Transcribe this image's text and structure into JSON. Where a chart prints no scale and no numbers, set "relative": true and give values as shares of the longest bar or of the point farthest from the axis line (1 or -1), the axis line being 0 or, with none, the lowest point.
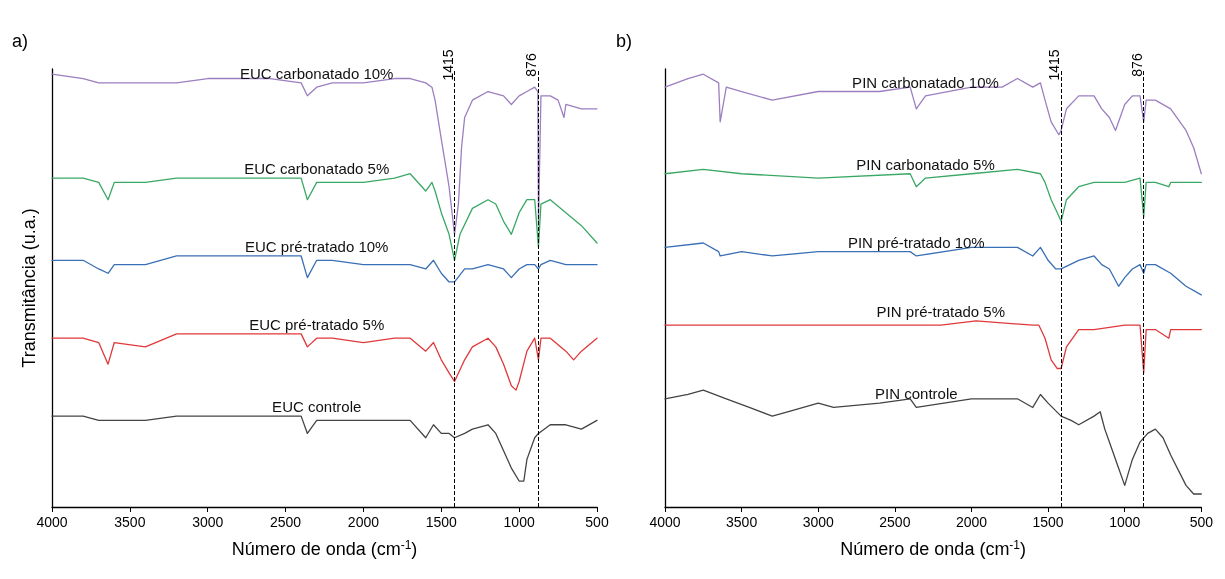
{
  "chart_data": [
    {
      "type": "line",
      "relative": true,
      "xlabel": "Número de onda (cm$^{-1}$)",
      "ylabel": "Transmitância (u.a.)",
      "annotations": [
        "a)"
      ],
      "xlim": [
        4000,
        500
      ],
      "xticks": [
        4000,
        3500,
        3000,
        2500,
        2000,
        1500,
        1000,
        500
      ],
      "grid": false,
      "legend": false,
      "marker": "none",
      "line_style": "solid",
      "ref_lines": [
        {
          "axis": "x",
          "value": 1415,
          "label": "1415",
          "color": "#000000",
          "line_style": "dashed"
        },
        {
          "axis": "x",
          "value": 876,
          "label": "876",
          "color": "#000000",
          "line_style": "dashed"
        }
      ],
      "series": [
        {
          "name": "EUC carbonatado 10%",
          "color": "#9b7fc0",
          "x": [
            4000,
            3800,
            3700,
            3600,
            3400,
            3200,
            3000,
            2600,
            2400,
            2360,
            2300,
            2200,
            2000,
            1800,
            1700,
            1600,
            1560,
            1540,
            1500,
            1450,
            1415,
            1390,
            1370,
            1350,
            1300,
            1200,
            1100,
            1050,
            1000,
            950,
            900,
            880,
            876,
            860,
            800,
            750,
            712,
            700,
            600,
            500
          ],
          "values": [
            1.0,
            0.99,
            0.98,
            0.98,
            0.98,
            0.98,
            0.99,
            0.99,
            0.98,
            0.95,
            0.97,
            0.98,
            0.98,
            0.99,
            0.99,
            0.98,
            0.97,
            0.94,
            0.85,
            0.74,
            0.63,
            0.7,
            0.83,
            0.9,
            0.94,
            0.96,
            0.95,
            0.93,
            0.95,
            0.96,
            0.97,
            0.96,
            0.65,
            0.95,
            0.95,
            0.94,
            0.9,
            0.93,
            0.92,
            0.92
          ]
        },
        {
          "name": "EUC carbonatado 5%",
          "color": "#3aa865",
          "x": [
            4000,
            3800,
            3700,
            3640,
            3600,
            3400,
            3200,
            3000,
            2600,
            2400,
            2360,
            2300,
            2200,
            2000,
            1800,
            1700,
            1600,
            1560,
            1540,
            1500,
            1450,
            1415,
            1380,
            1300,
            1200,
            1150,
            1100,
            1050,
            1000,
            950,
            900,
            876,
            860,
            800,
            700,
            600,
            500
          ],
          "values": [
            0.76,
            0.76,
            0.75,
            0.71,
            0.75,
            0.75,
            0.76,
            0.76,
            0.76,
            0.76,
            0.71,
            0.75,
            0.75,
            0.75,
            0.76,
            0.77,
            0.73,
            0.75,
            0.73,
            0.68,
            0.63,
            0.57,
            0.63,
            0.69,
            0.71,
            0.7,
            0.66,
            0.63,
            0.68,
            0.71,
            0.71,
            0.6,
            0.7,
            0.71,
            0.68,
            0.65,
            0.61
          ]
        },
        {
          "name": "EUC pré-tratado 10%",
          "color": "#3a6fb5",
          "x": [
            4000,
            3800,
            3700,
            3640,
            3600,
            3400,
            3200,
            3000,
            2600,
            2400,
            2360,
            2300,
            2200,
            2000,
            1800,
            1700,
            1600,
            1550,
            1500,
            1450,
            1415,
            1350,
            1300,
            1200,
            1100,
            1050,
            1000,
            950,
            900,
            876,
            860,
            800,
            700,
            600,
            500
          ],
          "values": [
            0.57,
            0.57,
            0.55,
            0.54,
            0.56,
            0.56,
            0.58,
            0.58,
            0.58,
            0.58,
            0.53,
            0.57,
            0.57,
            0.56,
            0.56,
            0.56,
            0.55,
            0.57,
            0.54,
            0.52,
            0.52,
            0.55,
            0.55,
            0.56,
            0.55,
            0.53,
            0.55,
            0.56,
            0.56,
            0.55,
            0.56,
            0.57,
            0.56,
            0.56,
            0.56
          ]
        },
        {
          "name": "EUC pré-tratado 5%",
          "color": "#e0393b",
          "x": [
            4000,
            3800,
            3700,
            3640,
            3600,
            3400,
            3200,
            3000,
            2600,
            2400,
            2360,
            2300,
            2200,
            2000,
            1800,
            1700,
            1600,
            1550,
            1500,
            1450,
            1415,
            1350,
            1300,
            1200,
            1150,
            1100,
            1050,
            1020,
            1000,
            950,
            900,
            876,
            860,
            800,
            700,
            650,
            600,
            500
          ],
          "values": [
            0.39,
            0.39,
            0.38,
            0.33,
            0.38,
            0.37,
            0.4,
            0.4,
            0.4,
            0.4,
            0.37,
            0.39,
            0.39,
            0.38,
            0.39,
            0.39,
            0.36,
            0.38,
            0.34,
            0.31,
            0.29,
            0.34,
            0.37,
            0.39,
            0.37,
            0.33,
            0.28,
            0.27,
            0.29,
            0.36,
            0.39,
            0.34,
            0.39,
            0.39,
            0.36,
            0.34,
            0.36,
            0.39
          ]
        },
        {
          "name": "EUC controle",
          "color": "#444444",
          "x": [
            4000,
            3800,
            3700,
            3600,
            3400,
            3200,
            3000,
            2600,
            2400,
            2360,
            2300,
            2200,
            2000,
            1800,
            1700,
            1600,
            1550,
            1500,
            1450,
            1415,
            1350,
            1300,
            1200,
            1150,
            1100,
            1050,
            1000,
            970,
            950,
            900,
            876,
            800,
            700,
            600,
            500
          ],
          "values": [
            0.21,
            0.21,
            0.2,
            0.2,
            0.2,
            0.21,
            0.21,
            0.21,
            0.21,
            0.17,
            0.2,
            0.2,
            0.2,
            0.2,
            0.2,
            0.16,
            0.19,
            0.17,
            0.17,
            0.16,
            0.17,
            0.18,
            0.19,
            0.17,
            0.13,
            0.09,
            0.06,
            0.06,
            0.11,
            0.16,
            0.17,
            0.19,
            0.19,
            0.18,
            0.2
          ]
        }
      ]
    },
    {
      "type": "line",
      "relative": true,
      "xlabel": "Número de onda (cm$^{-1}$)",
      "annotations": [
        "b)"
      ],
      "xlim": [
        4000,
        500
      ],
      "xticks": [
        4000,
        3500,
        3000,
        2500,
        2000,
        1500,
        1000,
        500
      ],
      "grid": false,
      "legend": false,
      "marker": "none",
      "line_style": "solid",
      "ref_lines": [
        {
          "axis": "x",
          "value": 1415,
          "label": "1415",
          "color": "#000000",
          "line_style": "dashed"
        },
        {
          "axis": "x",
          "value": 876,
          "label": "876",
          "color": "#000000",
          "line_style": "dashed"
        }
      ],
      "series": [
        {
          "name": "PIN carbonatado 10%",
          "color": "#9b7fc0",
          "x": [
            4000,
            3850,
            3750,
            3650,
            3640,
            3600,
            3500,
            3300,
            3000,
            2600,
            2400,
            2360,
            2300,
            2000,
            1800,
            1700,
            1600,
            1550,
            1520,
            1480,
            1430,
            1415,
            1380,
            1300,
            1200,
            1150,
            1100,
            1060,
            1000,
            950,
            900,
            876,
            860,
            800,
            700,
            600,
            550,
            500
          ],
          "values": [
            0.97,
            0.99,
            1.0,
            0.98,
            0.89,
            0.97,
            0.96,
            0.94,
            0.96,
            0.96,
            0.97,
            0.92,
            0.95,
            0.97,
            0.97,
            0.99,
            0.97,
            0.98,
            0.94,
            0.89,
            0.86,
            0.87,
            0.92,
            0.95,
            0.95,
            0.92,
            0.9,
            0.87,
            0.93,
            0.95,
            0.95,
            0.89,
            0.94,
            0.94,
            0.92,
            0.87,
            0.83,
            0.77
          ]
        },
        {
          "name": "PIN carbonatado 5%",
          "color": "#3aa865",
          "x": [
            4000,
            3750,
            3500,
            3000,
            2400,
            2360,
            2300,
            2000,
            1700,
            1550,
            1520,
            1480,
            1440,
            1415,
            1380,
            1300,
            1200,
            1000,
            900,
            876,
            860,
            800,
            712,
            700,
            500
          ],
          "values": [
            0.77,
            0.78,
            0.77,
            0.76,
            0.77,
            0.74,
            0.76,
            0.77,
            0.78,
            0.77,
            0.75,
            0.71,
            0.68,
            0.66,
            0.71,
            0.74,
            0.75,
            0.75,
            0.76,
            0.67,
            0.75,
            0.75,
            0.74,
            0.75,
            0.75
          ]
        },
        {
          "name": "PIN pré-tratado 10%",
          "color": "#3a6fb5",
          "x": [
            4000,
            3750,
            3650,
            3640,
            3500,
            3300,
            3000,
            2600,
            2400,
            2360,
            2000,
            1700,
            1600,
            1550,
            1500,
            1450,
            1415,
            1300,
            1200,
            1150,
            1100,
            1040,
            1000,
            950,
            900,
            876,
            860,
            800,
            700,
            600,
            500
          ],
          "values": [
            0.6,
            0.61,
            0.59,
            0.58,
            0.59,
            0.58,
            0.59,
            0.59,
            0.59,
            0.58,
            0.6,
            0.6,
            0.58,
            0.6,
            0.57,
            0.55,
            0.55,
            0.57,
            0.58,
            0.56,
            0.55,
            0.51,
            0.53,
            0.55,
            0.56,
            0.54,
            0.56,
            0.56,
            0.54,
            0.51,
            0.49
          ]
        },
        {
          "name": "PIN pré-tratado 5%",
          "color": "#e0393b",
          "x": [
            4000,
            3000,
            2200,
            1970,
            1600,
            1560,
            1520,
            1480,
            1440,
            1415,
            1380,
            1300,
            1200,
            1000,
            900,
            876,
            860,
            800,
            712,
            700,
            500
          ],
          "values": [
            0.42,
            0.42,
            0.42,
            0.43,
            0.42,
            0.42,
            0.39,
            0.34,
            0.32,
            0.32,
            0.37,
            0.41,
            0.41,
            0.42,
            0.42,
            0.31,
            0.41,
            0.41,
            0.39,
            0.41,
            0.41
          ]
        },
        {
          "name": "PIN controle",
          "color": "#444444",
          "x": [
            4000,
            3850,
            3750,
            3600,
            3450,
            3300,
            3200,
            3000,
            2900,
            2600,
            2400,
            2360,
            2000,
            1700,
            1600,
            1550,
            1500,
            1415,
            1350,
            1300,
            1200,
            1160,
            1130,
            1100,
            1050,
            1000,
            950,
            900,
            850,
            800,
            750,
            700,
            600,
            550,
            500
          ],
          "values": [
            0.25,
            0.26,
            0.27,
            0.25,
            0.23,
            0.21,
            0.22,
            0.24,
            0.23,
            0.24,
            0.25,
            0.23,
            0.25,
            0.25,
            0.23,
            0.26,
            0.24,
            0.21,
            0.2,
            0.19,
            0.21,
            0.22,
            0.18,
            0.15,
            0.1,
            0.05,
            0.11,
            0.15,
            0.17,
            0.18,
            0.16,
            0.12,
            0.05,
            0.03,
            0.03
          ]
        }
      ]
    }
  ]
}
